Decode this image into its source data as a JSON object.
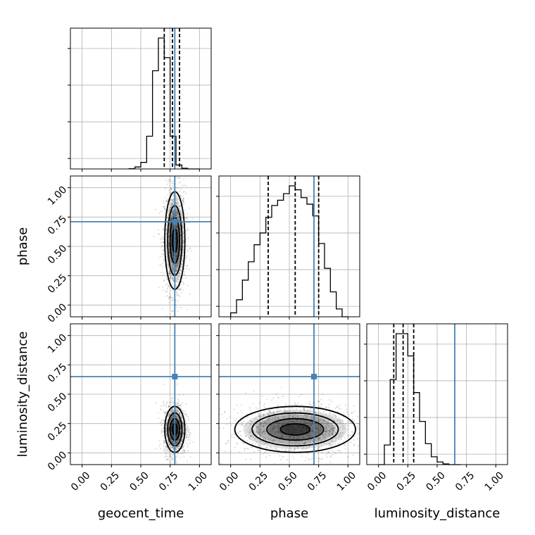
{
  "chart_data": {
    "type": "corner",
    "parameters": [
      "geocent_time",
      "phase",
      "luminosity_distance"
    ],
    "truths": {
      "geocent_time": 0.79,
      "phase": 0.71,
      "luminosity_distance": 0.65
    },
    "truth_color": "#4682b4",
    "axis_range": [
      -0.1,
      1.1
    ],
    "tick_labels": [
      "0.00",
      "0.25",
      "0.50",
      "0.75",
      "1.00"
    ],
    "grid": true,
    "histograms": {
      "geocent_time": {
        "bin_edges": [
          0.4,
          0.45,
          0.5,
          0.55,
          0.6,
          0.65,
          0.7,
          0.75,
          0.8,
          0.85,
          0.9,
          0.95,
          1.0
        ],
        "counts": [
          0.2,
          1.5,
          5,
          25,
          75,
          100,
          85,
          25,
          3,
          0.5,
          0,
          0
        ],
        "quantiles": [
          0.7,
          0.77,
          0.83
        ]
      },
      "phase": {
        "bin_edges": [
          0.0,
          0.05,
          0.1,
          0.15,
          0.2,
          0.25,
          0.3,
          0.35,
          0.4,
          0.45,
          0.5,
          0.55,
          0.6,
          0.65,
          0.7,
          0.75,
          0.8,
          0.85,
          0.9,
          0.95,
          1.0
        ],
        "counts": [
          3,
          13,
          28,
          42,
          55,
          64,
          76,
          85,
          89,
          94,
          100,
          97,
          91,
          86,
          77,
          56,
          37,
          19,
          6,
          0
        ],
        "quantiles": [
          0.32,
          0.55,
          0.75
        ]
      },
      "luminosity_distance": {
        "bin_edges": [
          0.0,
          0.05,
          0.1,
          0.15,
          0.2,
          0.25,
          0.3,
          0.35,
          0.4,
          0.45,
          0.5,
          0.55,
          0.6,
          0.65,
          0.7
        ],
        "counts": [
          0,
          15,
          65,
          100,
          100,
          83,
          55,
          33,
          16,
          6,
          2,
          0.5,
          0,
          0
        ],
        "quantiles": [
          0.13,
          0.21,
          0.3
        ]
      }
    },
    "joint_2d": [
      {
        "x": "geocent_time",
        "y": "phase",
        "center": [
          0.79,
          0.55
        ],
        "spread": [
          0.035,
          0.17
        ]
      },
      {
        "x": "geocent_time",
        "y": "luminosity_distance",
        "center": [
          0.79,
          0.2
        ],
        "spread": [
          0.035,
          0.08
        ]
      },
      {
        "x": "phase",
        "y": "luminosity_distance",
        "center": [
          0.55,
          0.2
        ],
        "spread": [
          0.21,
          0.08
        ]
      }
    ]
  }
}
